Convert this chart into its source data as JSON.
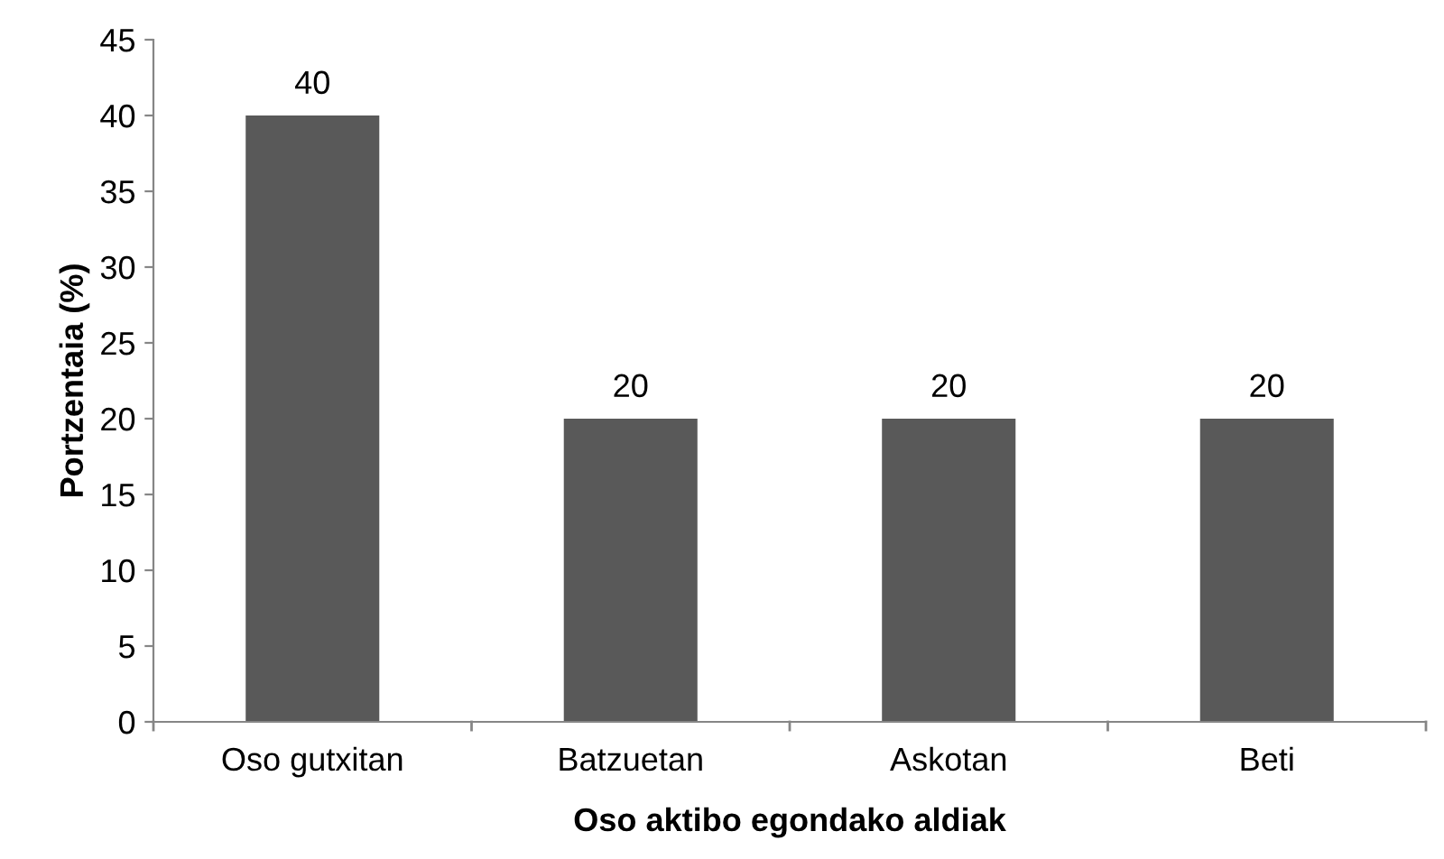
{
  "chart_data": {
    "type": "bar",
    "xlabel": "Oso aktibo egondako aldiak",
    "ylabel": "Portzentaia (%)",
    "categories": [
      "Oso gutxitan",
      "Batzuetan",
      "Askotan",
      "Beti"
    ],
    "values": [
      40,
      20,
      20,
      20
    ],
    "color": "#595959",
    "ylim": [
      0,
      45
    ],
    "yticks": [
      0,
      5,
      10,
      15,
      20,
      25,
      30,
      35,
      40,
      45
    ],
    "grid": false,
    "data_labels": true
  }
}
